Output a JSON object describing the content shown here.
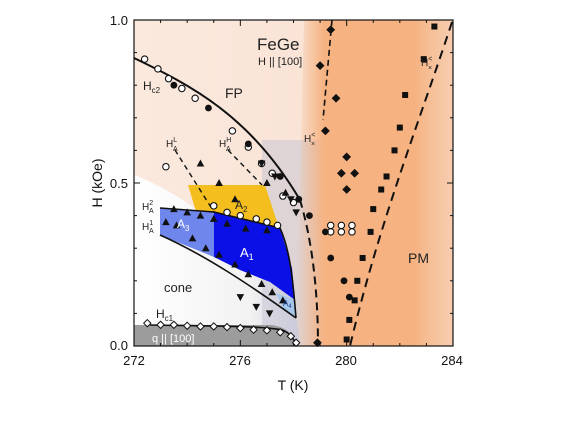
{
  "chart_data": {
    "type": "scatter",
    "title": "FeGe",
    "subtitle": "H || [100]",
    "xlabel": "T (K)",
    "ylabel": "H (kOe)",
    "xlim": [
      272,
      284
    ],
    "ylim": [
      0.0,
      1.0
    ],
    "x_ticks": [
      "272",
      "276",
      "280",
      "284"
    ],
    "y_ticks": [
      "0.0",
      "0.5",
      "1.0"
    ],
    "grid": false,
    "legend": "none",
    "colors": {
      "A1": "#0a10e6",
      "A2": "#f4be1e",
      "A3": "#6f86ec",
      "A4": "#a6c6ea",
      "cone_base": "#9c9c9c",
      "FP_tint": "#f9e6da",
      "PM": "#f6b07d",
      "black": "#111111"
    },
    "phase_labels": {
      "FP": "FP",
      "PM": "PM",
      "cone": "cone",
      "A1": "A",
      "A1_sub": "1",
      "A2": "A",
      "A2_sub": "2",
      "A3": "A",
      "A3_sub": "3",
      "A4": "A",
      "A4_sub": "4",
      "q100": "q || [100]"
    },
    "field_labels": {
      "Hc2": "H",
      "Hc2_sub": "c2",
      "Hc1": "H",
      "Hc1_sub": "c1",
      "HAL": "H",
      "HAL_sup": "L",
      "HAL_sub": "A",
      "HAH": "H",
      "HAH_sup": "H",
      "HAH_sub": "A",
      "HA1": "H",
      "HA1_sup": "1",
      "HA1_sub": "A",
      "HA2": "H",
      "HA2_sup": "2",
      "HA2_sub": "A",
      "Hx": "H",
      "Hx_sup": "<",
      "Hx_sub": "×",
      "Hx2": "H",
      "Hx2_sup": "<",
      "Hx2_sub": "×"
    },
    "series": [
      {
        "marker": "diamond-open",
        "points": [
          [
            272.5,
            0.07
          ],
          [
            273.0,
            0.065
          ],
          [
            273.5,
            0.065
          ],
          [
            274.0,
            0.062
          ],
          [
            274.5,
            0.06
          ],
          [
            275.0,
            0.06
          ],
          [
            275.5,
            0.058
          ],
          [
            276.0,
            0.055
          ],
          [
            276.5,
            0.05
          ],
          [
            277.0,
            0.048
          ],
          [
            277.5,
            0.042
          ],
          [
            277.9,
            0.03
          ],
          [
            278.1,
            0.01
          ]
        ]
      },
      {
        "marker": "circle-open",
        "points": [
          [
            272.4,
            0.88
          ],
          [
            272.9,
            0.85
          ],
          [
            273.3,
            0.82
          ],
          [
            273.8,
            0.79
          ],
          [
            274.3,
            0.76
          ],
          [
            275.7,
            0.66
          ],
          [
            276.3,
            0.61
          ],
          [
            276.8,
            0.56
          ],
          [
            277.2,
            0.53
          ],
          [
            277.6,
            0.46
          ],
          [
            278.0,
            0.44
          ],
          [
            279.4,
            0.37
          ],
          [
            279.8,
            0.37
          ],
          [
            280.2,
            0.37
          ],
          [
            279.4,
            0.35
          ],
          [
            279.8,
            0.35
          ],
          [
            280.2,
            0.35
          ],
          [
            273.2,
            0.55
          ],
          [
            275.0,
            0.43
          ],
          [
            275.5,
            0.41
          ],
          [
            276.0,
            0.4
          ],
          [
            276.6,
            0.39
          ],
          [
            277.0,
            0.38
          ],
          [
            277.4,
            0.37
          ]
        ]
      },
      {
        "marker": "circle-filled",
        "points": [
          [
            273.5,
            0.8
          ],
          [
            274.8,
            0.73
          ],
          [
            276.3,
            0.62
          ],
          [
            277.5,
            0.52
          ],
          [
            278.2,
            0.45
          ],
          [
            278.6,
            0.4
          ],
          [
            279.2,
            0.35
          ],
          [
            279.4,
            0.27
          ],
          [
            279.9,
            0.2
          ],
          [
            280.1,
            0.15
          ]
        ]
      },
      {
        "marker": "triangle-up",
        "points": [
          [
            274.5,
            0.56
          ],
          [
            275.2,
            0.5
          ],
          [
            275.8,
            0.45
          ],
          [
            277.0,
            0.5
          ],
          [
            277.7,
            0.47
          ],
          [
            273.5,
            0.42
          ],
          [
            274.0,
            0.41
          ],
          [
            274.5,
            0.4
          ],
          [
            275.0,
            0.39
          ],
          [
            275.5,
            0.375
          ],
          [
            276.2,
            0.36
          ],
          [
            277.0,
            0.355
          ],
          [
            273.2,
            0.38
          ],
          [
            273.6,
            0.37
          ],
          [
            274.2,
            0.33
          ],
          [
            274.7,
            0.3
          ],
          [
            275.2,
            0.28
          ],
          [
            275.8,
            0.25
          ],
          [
            276.3,
            0.22
          ],
          [
            276.8,
            0.19
          ],
          [
            277.2,
            0.165
          ],
          [
            277.6,
            0.14
          ]
        ]
      },
      {
        "marker": "triangle-down",
        "points": [
          [
            276.8,
            0.56
          ],
          [
            277.3,
            0.52
          ],
          [
            277.9,
            0.45
          ],
          [
            278.1,
            0.41
          ],
          [
            276.0,
            0.15
          ],
          [
            276.6,
            0.12
          ],
          [
            277.1,
            0.1
          ]
        ]
      },
      {
        "marker": "diamond-filled",
        "points": [
          [
            279.4,
            0.97
          ],
          [
            279.0,
            0.86
          ],
          [
            279.6,
            0.76
          ],
          [
            279.2,
            0.66
          ],
          [
            280.0,
            0.58
          ],
          [
            279.8,
            0.53
          ],
          [
            280.3,
            0.53
          ],
          [
            280.0,
            0.48
          ],
          [
            278.9,
            0.01
          ]
        ]
      },
      {
        "marker": "square-filled",
        "points": [
          [
            283.3,
            0.98
          ],
          [
            282.9,
            0.88
          ],
          [
            282.2,
            0.77
          ],
          [
            282.0,
            0.67
          ],
          [
            281.8,
            0.6
          ],
          [
            281.5,
            0.52
          ],
          [
            281.3,
            0.48
          ],
          [
            281.0,
            0.42
          ],
          [
            280.9,
            0.35
          ],
          [
            280.6,
            0.27
          ],
          [
            280.4,
            0.2
          ],
          [
            280.3,
            0.14
          ],
          [
            280.1,
            0.08
          ],
          [
            280.0,
            0.02
          ]
        ]
      }
    ]
  }
}
